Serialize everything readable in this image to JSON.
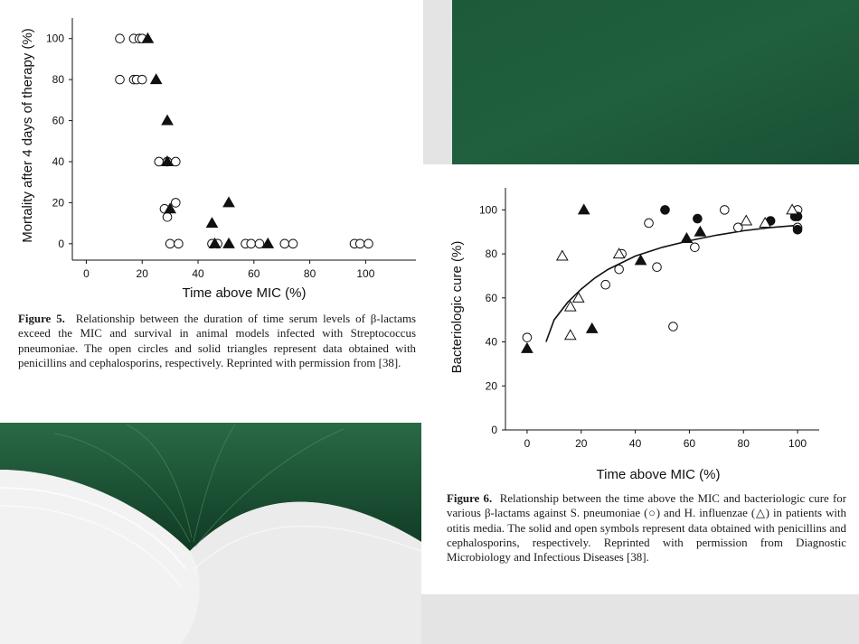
{
  "theme": {
    "green": "#1f5a3a",
    "green_dark": "#123a26",
    "white": "#ffffff",
    "gray": "#e4e4e4"
  },
  "chart_data": [
    {
      "type": "scatter",
      "title": "",
      "xlabel": "Time above MIC (%)",
      "ylabel": "Mortality after 4 days of therapy (%)",
      "xlim": [
        -5,
        118
      ],
      "ylim": [
        -8,
        110
      ],
      "xticks": [
        0,
        20,
        40,
        60,
        80,
        100
      ],
      "yticks": [
        0,
        20,
        40,
        60,
        80,
        100
      ],
      "series": [
        {
          "marker": "open-circle",
          "points": [
            [
              12,
              100
            ],
            [
              17,
              100
            ],
            [
              19,
              100
            ],
            [
              20,
              100
            ],
            [
              12,
              80
            ],
            [
              17,
              80
            ],
            [
              18,
              80
            ],
            [
              20,
              80
            ],
            [
              26,
              40
            ],
            [
              29,
              40
            ],
            [
              32,
              40
            ],
            [
              28,
              17
            ],
            [
              29,
              13
            ],
            [
              32,
              20
            ],
            [
              30,
              0
            ],
            [
              33,
              0
            ],
            [
              45,
              0
            ],
            [
              47,
              0
            ],
            [
              57,
              0
            ],
            [
              59,
              0
            ],
            [
              62,
              0
            ],
            [
              71,
              0
            ],
            [
              74,
              0
            ],
            [
              96,
              0
            ],
            [
              98,
              0
            ],
            [
              101,
              0
            ]
          ]
        },
        {
          "marker": "solid-triangle",
          "points": [
            [
              22,
              100
            ],
            [
              25,
              80
            ],
            [
              29,
              60
            ],
            [
              29,
              40
            ],
            [
              30,
              17
            ],
            [
              45,
              10
            ],
            [
              51,
              20
            ],
            [
              46,
              0
            ],
            [
              51,
              0
            ],
            [
              65,
              0
            ]
          ]
        }
      ],
      "grid": false
    },
    {
      "type": "scatter",
      "title": "",
      "xlabel": "Time above MIC (%)",
      "ylabel": "Bacteriologic cure (%)",
      "xlim": [
        -8,
        108
      ],
      "ylim": [
        0,
        110
      ],
      "xticks": [
        0,
        20,
        40,
        60,
        80,
        100
      ],
      "yticks": [
        0,
        20,
        40,
        60,
        80,
        100
      ],
      "series": [
        {
          "marker": "open-circle",
          "points": [
            [
              0,
              42
            ],
            [
              29,
              66
            ],
            [
              34,
              73
            ],
            [
              35,
              80
            ],
            [
              45,
              94
            ],
            [
              48,
              74
            ],
            [
              54,
              47
            ],
            [
              62,
              83
            ],
            [
              73,
              100
            ],
            [
              78,
              92
            ],
            [
              100,
              100
            ],
            [
              100,
              92
            ]
          ]
        },
        {
          "marker": "solid-circle",
          "points": [
            [
              51,
              100
            ],
            [
              63,
              96
            ],
            [
              90,
              95
            ],
            [
              99,
              97
            ],
            [
              100,
              97
            ],
            [
              100,
              91
            ]
          ]
        },
        {
          "marker": "open-triangle",
          "points": [
            [
              13,
              79
            ],
            [
              16,
              56
            ],
            [
              16,
              43
            ],
            [
              19,
              60
            ],
            [
              34,
              80
            ],
            [
              81,
              95
            ],
            [
              88,
              94
            ],
            [
              98,
              100
            ]
          ]
        },
        {
          "marker": "solid-triangle",
          "points": [
            [
              0,
              37
            ],
            [
              21,
              100
            ],
            [
              24,
              46
            ],
            [
              42,
              77
            ],
            [
              59,
              87
            ],
            [
              64,
              90
            ]
          ]
        }
      ],
      "fit_curve": [
        [
          7,
          40
        ],
        [
          10,
          50
        ],
        [
          15,
          58
        ],
        [
          20,
          64
        ],
        [
          25,
          69
        ],
        [
          30,
          73
        ],
        [
          40,
          79
        ],
        [
          50,
          83
        ],
        [
          60,
          86
        ],
        [
          70,
          88.5
        ],
        [
          80,
          90.5
        ],
        [
          90,
          92
        ],
        [
          100,
          93
        ]
      ],
      "grid": false
    }
  ],
  "captions": {
    "fig5_label": "Figure 5.",
    "fig5_text": "Relationship between the duration of time serum levels of β-lactams exceed the MIC and survival in animal models infected with Streptococcus pneumoniae. The open circles and solid triangles represent data obtained with penicillins and cephalosporins, respectively. Reprinted with permission from [38].",
    "fig6_label": "Figure 6.",
    "fig6_text": "Relationship between the time above the MIC and bacteriologic cure for various β-lactams against S. pneumoniae (○) and H. influenzae (△) in patients with otitis media. The solid and open symbols represent data obtained with penicillins and cephalosporins, respectively. Reprinted with permission from Diagnostic Microbiology and Infectious Diseases [38]."
  }
}
